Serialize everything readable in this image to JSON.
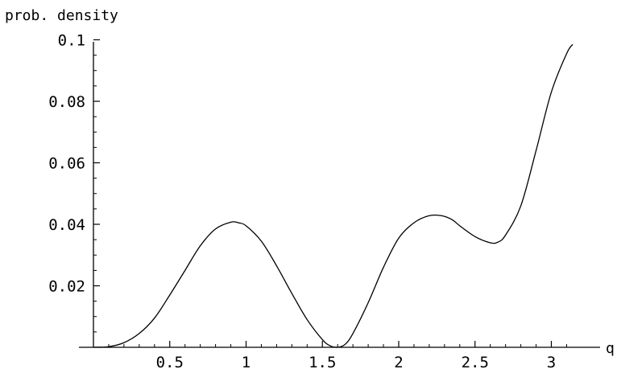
{
  "chart_data": {
    "type": "line",
    "xlabel": "q",
    "ylabel": "prob. density",
    "xlim": [
      0,
      3.1416
    ],
    "ylim": [
      0,
      0.1
    ],
    "grid": false,
    "x_ticks": [
      {
        "value": 0.5,
        "label": "0.5"
      },
      {
        "value": 1,
        "label": "1"
      },
      {
        "value": 1.5,
        "label": "1.5"
      },
      {
        "value": 2,
        "label": "2"
      },
      {
        "value": 2.5,
        "label": "2.5"
      },
      {
        "value": 3,
        "label": "3"
      }
    ],
    "y_ticks": [
      {
        "value": 0.02,
        "label": "0.02"
      },
      {
        "value": 0.04,
        "label": "0.04"
      },
      {
        "value": 0.06,
        "label": "0.06"
      },
      {
        "value": 0.08,
        "label": "0.08"
      },
      {
        "value": 0.1,
        "label": "0.1"
      }
    ],
    "series": [
      {
        "color": "#000000",
        "x": [
          0,
          0.1,
          0.2,
          0.3,
          0.4,
          0.5,
          0.6,
          0.7,
          0.8,
          0.9,
          0.95,
          1.0,
          1.1,
          1.2,
          1.3,
          1.4,
          1.5,
          1.55,
          1.6,
          1.65,
          1.7,
          1.8,
          1.9,
          2.0,
          2.1,
          2.2,
          2.28,
          2.35,
          2.4,
          2.5,
          2.6,
          2.65,
          2.7,
          2.8,
          2.9,
          3.0,
          3.1,
          3.14
        ],
        "y": [
          0,
          0.0002,
          0.0015,
          0.0045,
          0.0095,
          0.017,
          0.025,
          0.033,
          0.0385,
          0.0407,
          0.0405,
          0.0395,
          0.0345,
          0.0265,
          0.0175,
          0.009,
          0.0025,
          0.0005,
          0.0,
          0.001,
          0.0045,
          0.0145,
          0.026,
          0.0355,
          0.0405,
          0.0428,
          0.0428,
          0.0415,
          0.0395,
          0.036,
          0.034,
          0.0342,
          0.0365,
          0.046,
          0.064,
          0.083,
          0.0955,
          0.0985
        ]
      }
    ]
  }
}
